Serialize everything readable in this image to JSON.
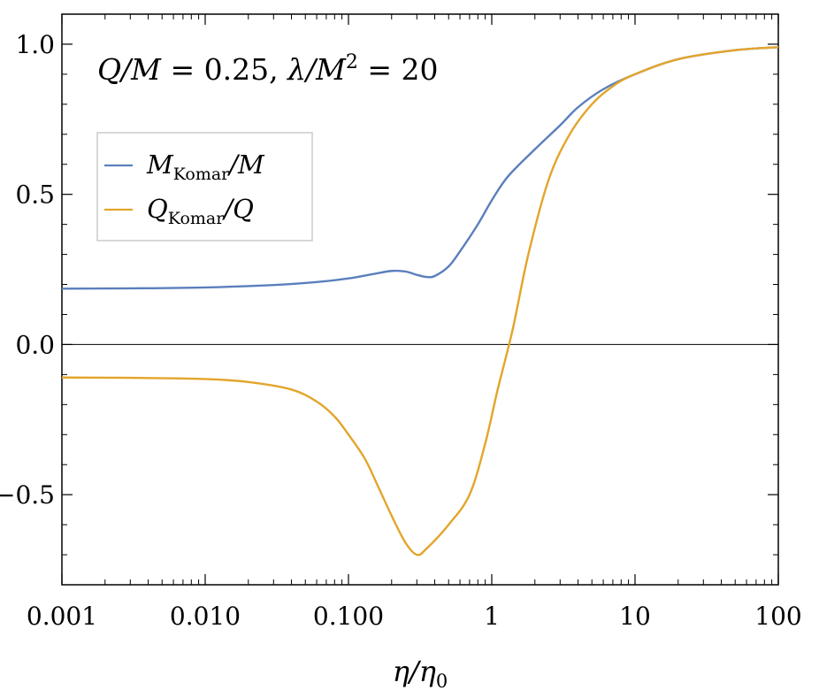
{
  "chart_data": {
    "type": "line",
    "title": "",
    "annotation": {
      "lhs1": "Q/M",
      "val1": "0.25",
      "lhs2": "λ/M",
      "exp2": "2",
      "val2": "20"
    },
    "xlabel": {
      "main": "η/η",
      "sub": "0"
    },
    "ylabel": "",
    "xscale": "log",
    "xlim": [
      0.001,
      100
    ],
    "ylim": [
      -0.8,
      1.1
    ],
    "xticks": [
      {
        "value": 0.001,
        "label": "0.001"
      },
      {
        "value": 0.01,
        "label": "0.010"
      },
      {
        "value": 0.1,
        "label": "0.100"
      },
      {
        "value": 1,
        "label": "1"
      },
      {
        "value": 10,
        "label": "10"
      },
      {
        "value": 100,
        "label": "100"
      }
    ],
    "yticks": [
      {
        "value": 1.0,
        "label": "1.0"
      },
      {
        "value": 0.5,
        "label": "0.5"
      },
      {
        "value": 0.0,
        "label": "0.0"
      },
      {
        "value": -0.5,
        "label": "−0.5"
      }
    ],
    "reference_line": {
      "y": 0,
      "color": "#000000"
    },
    "legend": {
      "position": "upper-left"
    },
    "series": [
      {
        "name": "M_Komar/M",
        "label_main": "M",
        "label_sub": "Komar",
        "label_tail": "/M",
        "color": "#5b7fbd",
        "points": [
          [
            0.001,
            0.186
          ],
          [
            0.003,
            0.187
          ],
          [
            0.01,
            0.19
          ],
          [
            0.03,
            0.198
          ],
          [
            0.06,
            0.208
          ],
          [
            0.1,
            0.22
          ],
          [
            0.15,
            0.235
          ],
          [
            0.2,
            0.245
          ],
          [
            0.25,
            0.243
          ],
          [
            0.3,
            0.232
          ],
          [
            0.35,
            0.225
          ],
          [
            0.4,
            0.228
          ],
          [
            0.5,
            0.26
          ],
          [
            0.6,
            0.31
          ],
          [
            0.8,
            0.4
          ],
          [
            1.0,
            0.48
          ],
          [
            1.3,
            0.56
          ],
          [
            2.0,
            0.65
          ],
          [
            3.0,
            0.73
          ],
          [
            4.0,
            0.79
          ],
          [
            6.0,
            0.85
          ],
          [
            10,
            0.9
          ],
          [
            20,
            0.95
          ],
          [
            50,
            0.98
          ],
          [
            100,
            0.99
          ]
        ]
      },
      {
        "name": "Q_Komar/Q",
        "label_main": "Q",
        "label_sub": "Komar",
        "label_tail": "/Q",
        "color": "#e3a52b",
        "points": [
          [
            0.001,
            -0.11
          ],
          [
            0.003,
            -0.111
          ],
          [
            0.01,
            -0.115
          ],
          [
            0.02,
            -0.125
          ],
          [
            0.04,
            -0.15
          ],
          [
            0.06,
            -0.19
          ],
          [
            0.08,
            -0.24
          ],
          [
            0.1,
            -0.3
          ],
          [
            0.13,
            -0.38
          ],
          [
            0.16,
            -0.47
          ],
          [
            0.2,
            -0.57
          ],
          [
            0.25,
            -0.66
          ],
          [
            0.3,
            -0.7
          ],
          [
            0.35,
            -0.68
          ],
          [
            0.5,
            -0.6
          ],
          [
            0.7,
            -0.5
          ],
          [
            0.9,
            -0.33
          ],
          [
            1.1,
            -0.15
          ],
          [
            1.4,
            0.05
          ],
          [
            1.8,
            0.3
          ],
          [
            2.5,
            0.55
          ],
          [
            3.5,
            0.7
          ],
          [
            5.0,
            0.8
          ],
          [
            7.0,
            0.86
          ],
          [
            10,
            0.9
          ],
          [
            20,
            0.95
          ],
          [
            50,
            0.98
          ],
          [
            100,
            0.99
          ]
        ]
      }
    ]
  }
}
